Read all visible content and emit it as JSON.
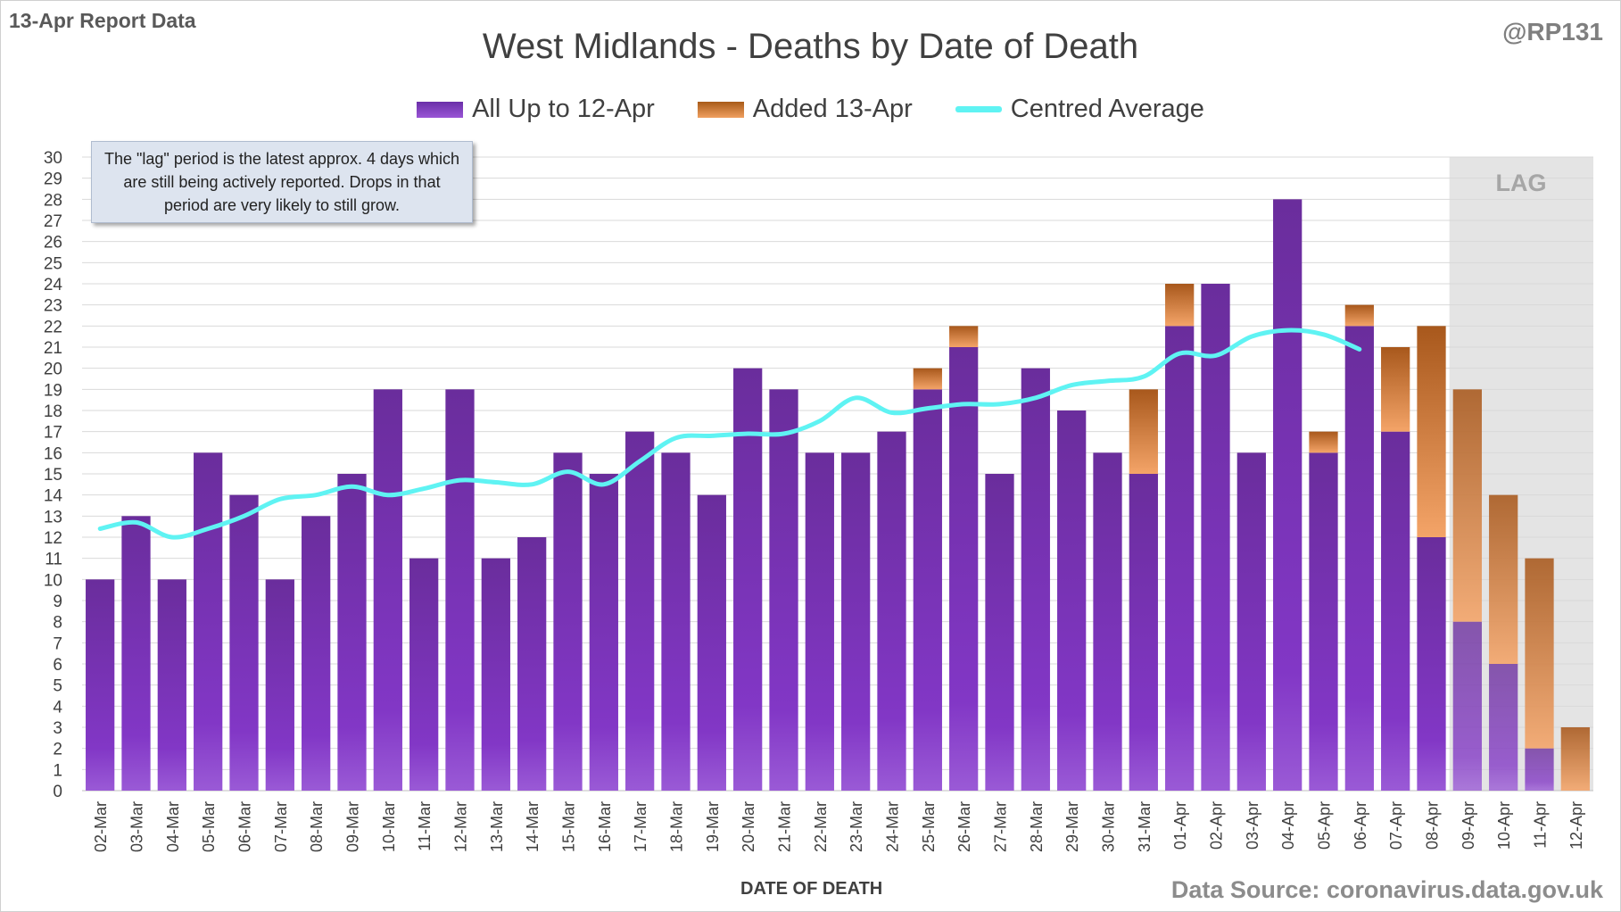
{
  "header": {
    "report_label": "13-Apr Report Data",
    "handle": "@RP131"
  },
  "chart_data": {
    "type": "bar",
    "stacked": true,
    "title": "West Midlands - Deaths by Date of Death",
    "xlabel": "DATE OF DEATH",
    "ylabel": "",
    "ylim": [
      0,
      30
    ],
    "yticks": [
      0,
      1,
      2,
      3,
      4,
      5,
      6,
      7,
      8,
      9,
      10,
      11,
      12,
      13,
      14,
      15,
      16,
      17,
      18,
      19,
      20,
      21,
      22,
      23,
      24,
      25,
      26,
      27,
      28,
      29,
      30
    ],
    "categories": [
      "02-Mar",
      "03-Mar",
      "04-Mar",
      "05-Mar",
      "06-Mar",
      "07-Mar",
      "08-Mar",
      "09-Mar",
      "10-Mar",
      "11-Mar",
      "12-Mar",
      "13-Mar",
      "14-Mar",
      "15-Mar",
      "16-Mar",
      "17-Mar",
      "18-Mar",
      "19-Mar",
      "20-Mar",
      "21-Mar",
      "22-Mar",
      "23-Mar",
      "24-Mar",
      "25-Mar",
      "26-Mar",
      "27-Mar",
      "28-Mar",
      "29-Mar",
      "30-Mar",
      "31-Mar",
      "01-Apr",
      "02-Apr",
      "03-Apr",
      "04-Apr",
      "05-Apr",
      "06-Apr",
      "07-Apr",
      "08-Apr",
      "09-Apr",
      "10-Apr",
      "11-Apr",
      "12-Apr"
    ],
    "series": [
      {
        "name": "All Up to 12-Apr",
        "values": [
          10,
          13,
          10,
          16,
          14,
          10,
          13,
          15,
          19,
          11,
          19,
          11,
          12,
          16,
          15,
          17,
          16,
          14,
          20,
          19,
          16,
          16,
          17,
          19,
          21,
          15,
          20,
          18,
          16,
          15,
          22,
          24,
          16,
          28,
          16,
          22,
          17,
          12,
          8,
          6,
          2,
          0
        ]
      },
      {
        "name": "Added 13-Apr",
        "values": [
          0,
          0,
          0,
          0,
          0,
          0,
          0,
          0,
          0,
          0,
          0,
          0,
          0,
          0,
          0,
          0,
          0,
          0,
          0,
          0,
          0,
          0,
          0,
          1,
          1,
          0,
          0,
          0,
          0,
          4,
          2,
          0,
          0,
          0,
          1,
          1,
          4,
          10,
          11,
          8,
          9,
          3
        ]
      },
      {
        "name": "Centred Average",
        "type": "line",
        "values": [
          12.4,
          12.7,
          12.0,
          12.4,
          13.0,
          13.8,
          14.0,
          14.4,
          14.0,
          14.3,
          14.7,
          14.6,
          14.5,
          15.1,
          14.5,
          15.6,
          16.7,
          16.8,
          16.9,
          16.9,
          17.5,
          18.6,
          17.9,
          18.1,
          18.3,
          18.3,
          18.6,
          19.2,
          19.4,
          19.6,
          20.7,
          20.6,
          21.5,
          21.8,
          21.6,
          20.9,
          null,
          null,
          null,
          null,
          null,
          null
        ]
      }
    ],
    "legend": [
      "All Up to 12-Apr",
      "Added 13-Apr",
      "Centred Average"
    ],
    "legend_position": "top-center",
    "grid": true,
    "lag_region": {
      "label": "LAG",
      "start": "09-Apr",
      "end": "12-Apr"
    },
    "annotation": "The \"lag\" period is the latest approx. 4 days which are still being actively reported.  Drops in that period are very likely to still grow.",
    "colors": {
      "all": "#7030a0",
      "added": "#e07a30",
      "average": "#5ff3f3",
      "lag_shade": "#e4e4e4"
    }
  },
  "footer": {
    "source": "Data Source: coronavirus.data.gov.uk"
  }
}
